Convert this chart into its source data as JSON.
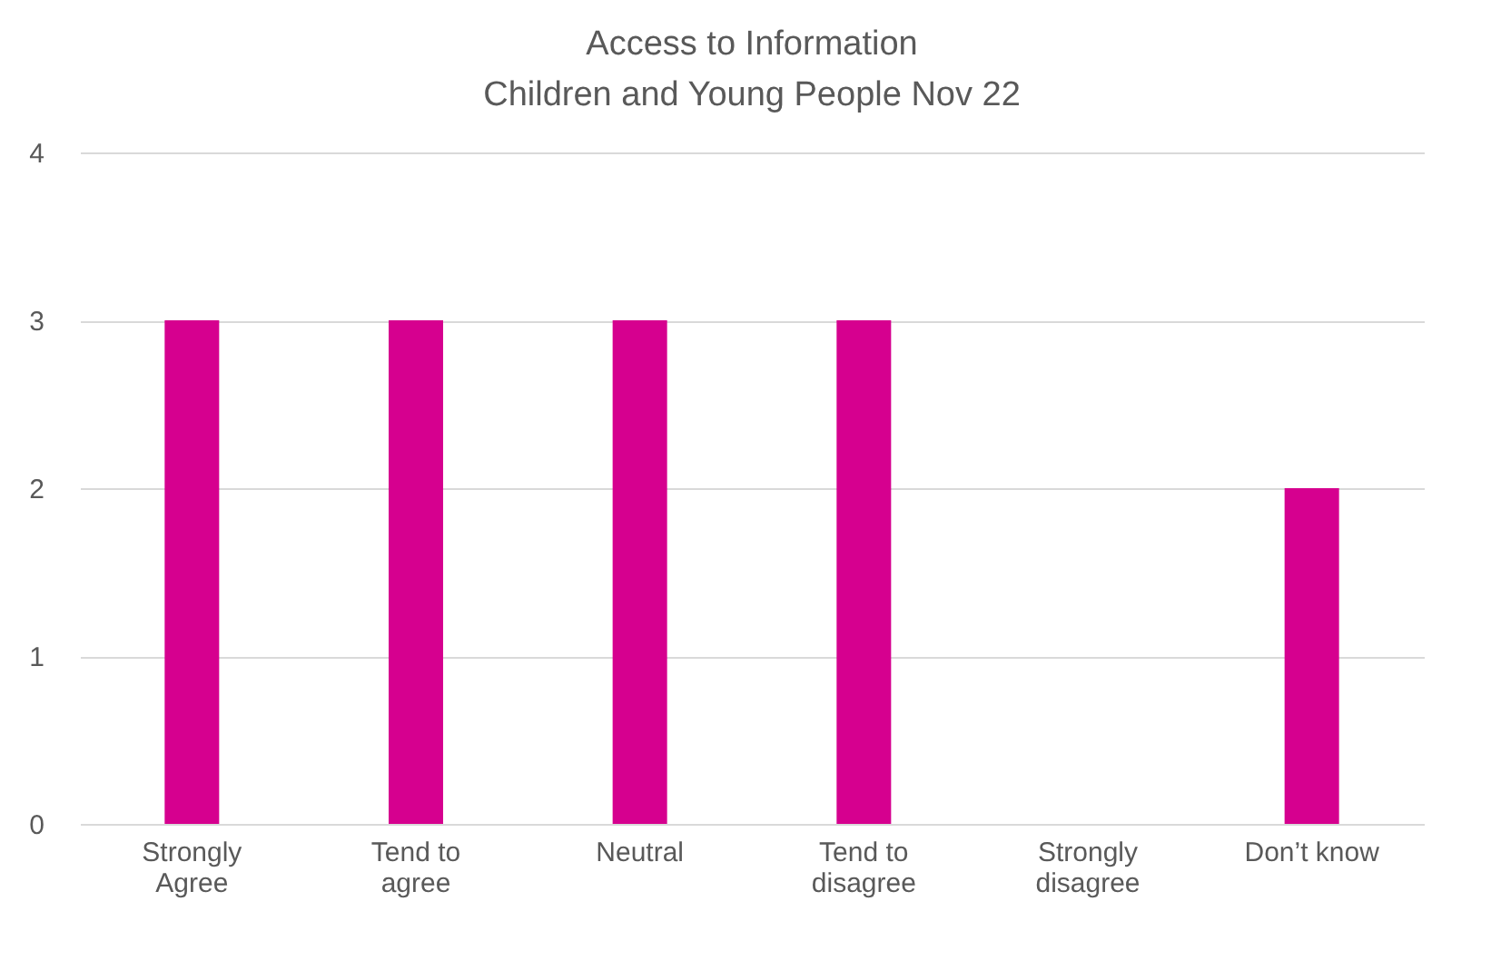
{
  "chart_data": {
    "type": "bar",
    "title": [
      "Access to Information",
      "Children and Young People Nov 22"
    ],
    "categories": [
      "Strongly Agree",
      "Tend to agree",
      "Neutral",
      "Tend to disagree",
      "Strongly disagree",
      "Don’t know"
    ],
    "values": [
      3,
      3,
      3,
      3,
      0,
      2
    ],
    "color": "#d6008f",
    "ylim": [
      0,
      4
    ],
    "yticks": [
      0,
      1,
      2,
      3,
      4
    ],
    "grid": "y"
  }
}
